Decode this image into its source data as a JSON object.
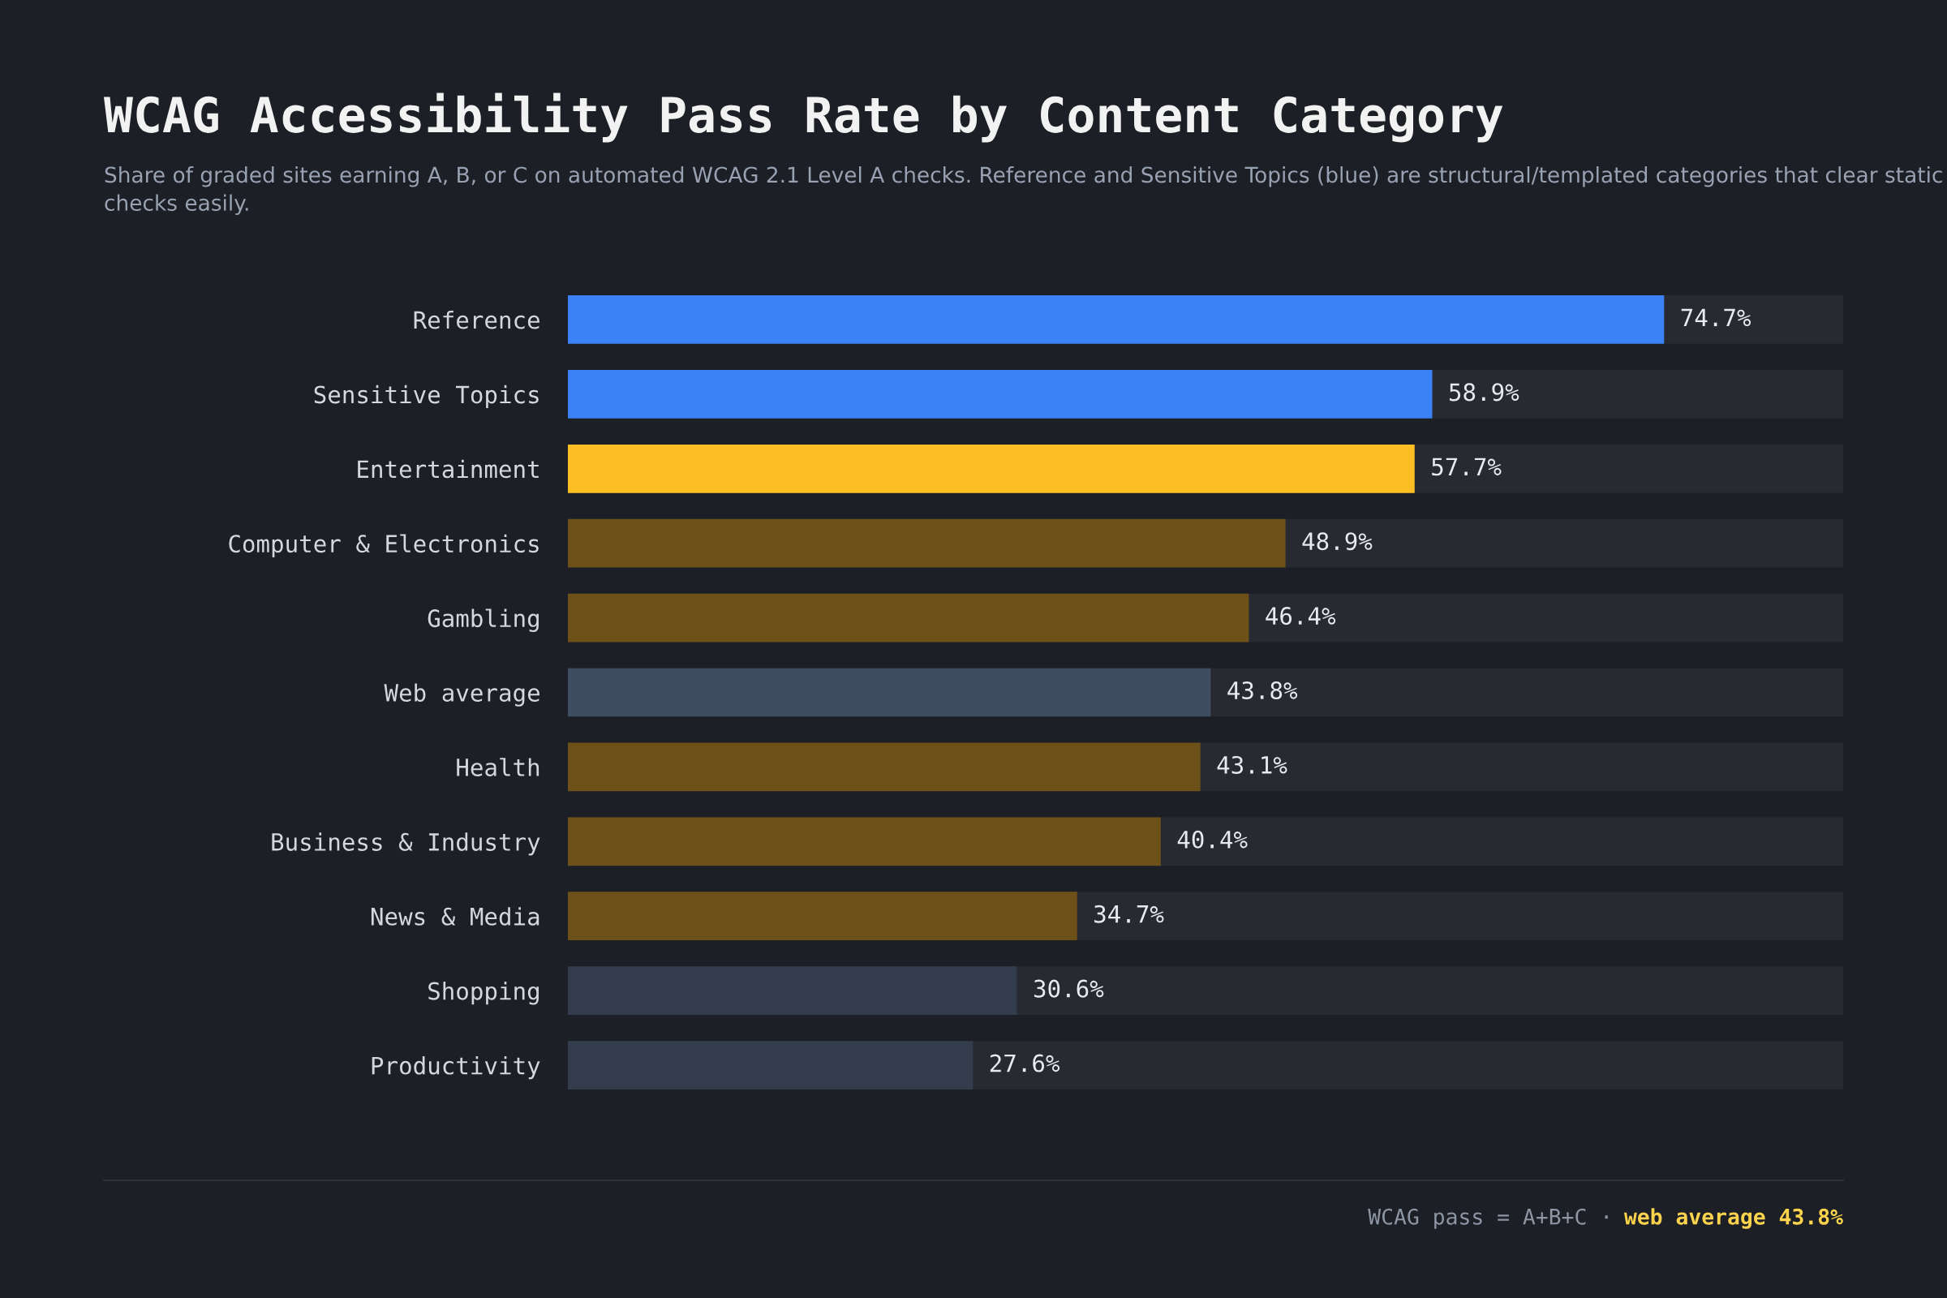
{
  "chart_data": {
    "type": "bar",
    "orientation": "horizontal",
    "title": "WCAG Accessibility Pass Rate by Content Category",
    "subtitle": "Share of graded sites earning A, B, or C on automated WCAG 2.1 Level A checks. Reference and Sensitive Topics (blue) are structural/templated categories that clear static checks easily.",
    "categories": [
      "Reference",
      "Sensitive Topics",
      "Entertainment",
      "Computer & Electronics",
      "Gambling",
      "Web average",
      "Health",
      "Business & Industry",
      "News & Media",
      "Shopping",
      "Productivity"
    ],
    "values": [
      74.7,
      58.9,
      57.7,
      48.9,
      46.4,
      43.8,
      43.1,
      40.4,
      34.7,
      30.6,
      27.6
    ],
    "value_labels": [
      "74.7%",
      "58.9%",
      "57.7%",
      "48.9%",
      "46.4%",
      "43.8%",
      "43.1%",
      "40.4%",
      "34.7%",
      "30.6%",
      "27.6%"
    ],
    "colors": [
      "#3b82f6",
      "#3b82f6",
      "#fbbf24",
      "#6e5019",
      "#6e5019",
      "#3f4d60",
      "#6e5019",
      "#6e5019",
      "#6e5019",
      "#333c4c",
      "#333c4c"
    ],
    "xlim": [
      0,
      86.9
    ],
    "tick_labels": "y",
    "grid": false,
    "annotations": [
      "WCAG pass = A+B+C ·",
      "web average 43.8%"
    ]
  }
}
